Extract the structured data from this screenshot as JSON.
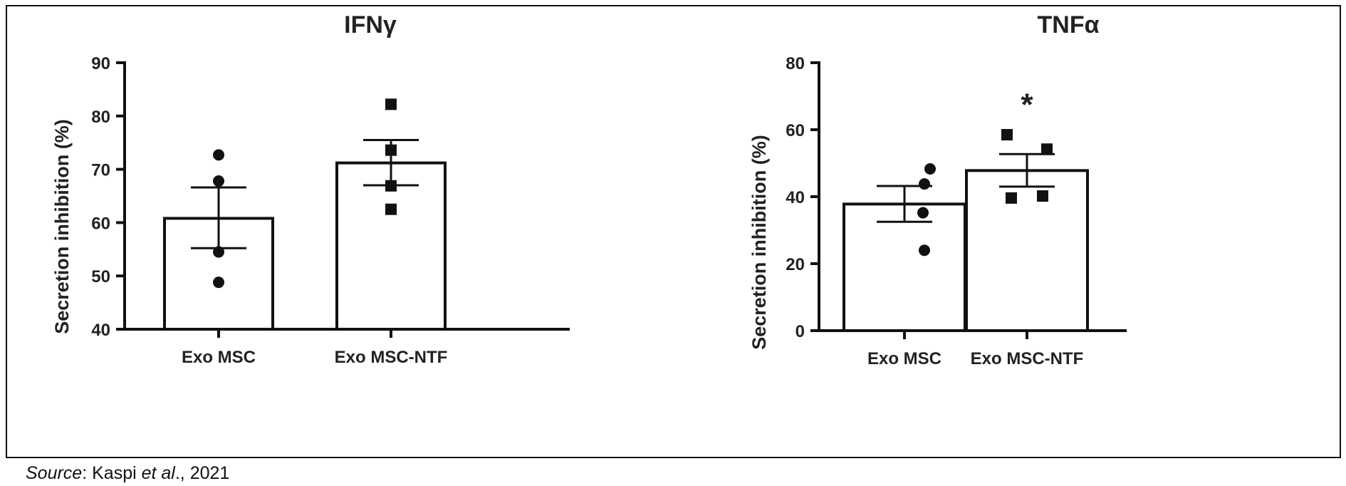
{
  "chart_data": [
    {
      "type": "bar",
      "title": "IFNγ",
      "ylabel": "Secretion inhibition (%)",
      "categories": [
        "Exo MSC",
        "Exo MSC-NTF"
      ],
      "values": [
        60.8,
        71.2
      ],
      "error_upper": [
        66.6,
        75.5
      ],
      "error_lower": [
        55.2,
        67.0
      ],
      "points": [
        [
          72.7,
          67.8,
          54.5,
          48.8
        ],
        [
          82.2,
          73.6,
          66.9,
          62.5
        ]
      ],
      "markers": [
        "circle",
        "square"
      ],
      "ylim": [
        40,
        90
      ],
      "yticks": [
        40,
        50,
        60,
        70,
        80,
        90
      ],
      "significance": [
        "",
        ""
      ]
    },
    {
      "type": "bar",
      "title": "TNFα",
      "ylabel": "Secretion inhibition (%)",
      "categories": [
        "Exo MSC",
        "Exo MSC-NTF"
      ],
      "values": [
        37.8,
        47.8
      ],
      "error_upper": [
        43.2,
        52.7
      ],
      "error_lower": [
        32.5,
        43.0
      ],
      "points": [
        [
          48.3,
          43.8,
          35.2,
          24.0
        ],
        [
          58.5,
          54.2,
          39.6,
          40.2
        ]
      ],
      "markers": [
        "circle",
        "square"
      ],
      "ylim": [
        0,
        80
      ],
      "yticks": [
        0,
        20,
        40,
        60,
        80
      ],
      "significance": [
        "",
        "*"
      ]
    }
  ],
  "source": {
    "label": "Source",
    "text": ": Kaspi ",
    "et_al": "et al",
    "year": "., 2021"
  }
}
